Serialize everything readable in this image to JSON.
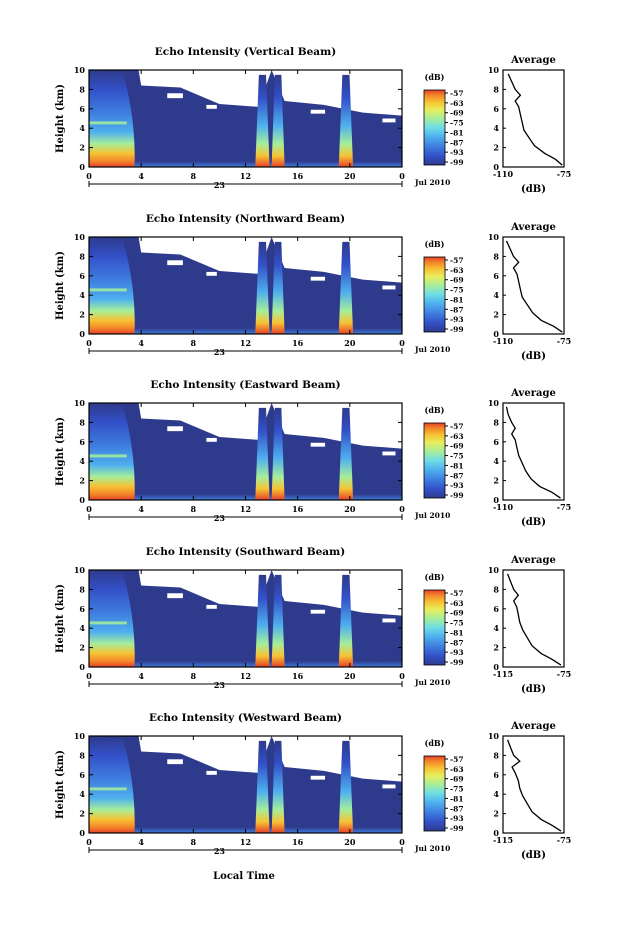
{
  "colors": {
    "background_fill": "#2e3a8c",
    "colormap": [
      "#2e3a8c",
      "#3350c8",
      "#3f7fe0",
      "#4fb0ee",
      "#6fdde6",
      "#a6ee9a",
      "#e9ee5c",
      "#f7c233",
      "#f3862a",
      "#e5402a"
    ]
  },
  "common": {
    "yticks": [
      "0",
      "2",
      "4",
      "6",
      "8",
      "10"
    ],
    "xticks": [
      "0",
      "4",
      "8",
      "12",
      "16",
      "20",
      "0"
    ],
    "ylabel": "Height (km)",
    "day_label": "23",
    "date_label": "Jul 2010",
    "cbar_unit": "(dB)",
    "avg_title": "Average",
    "avg_xlabel": "(dB)",
    "xlabel_bottom": "Local Time"
  },
  "chart_data": [
    {
      "type": "heatmap",
      "title": "Echo Intensity (Vertical Beam)",
      "ylabel": "Height (km)",
      "ylim": [
        0,
        10
      ],
      "xlim": [
        0,
        24
      ],
      "colorbar": {
        "label": "(dB)",
        "ticks": [
          "-57",
          "-63",
          "-69",
          "-75",
          "-81",
          "-87",
          "-93",
          "-99"
        ]
      },
      "average": {
        "type": "line",
        "title": "Average",
        "xlabel": "(dB)",
        "xticks": [
          "-110",
          "-75"
        ],
        "xlim": [
          -110,
          -75
        ],
        "values": [
          [
            -76,
            0.2
          ],
          [
            -80,
            0.8
          ],
          [
            -86,
            1.4
          ],
          [
            -92,
            2.2
          ],
          [
            -95,
            3.0
          ],
          [
            -98,
            3.8
          ],
          [
            -99,
            4.6
          ],
          [
            -100,
            5.4
          ],
          [
            -101,
            6.2
          ],
          [
            -103,
            6.8
          ],
          [
            -100,
            7.4
          ],
          [
            -103,
            8.0
          ],
          [
            -105,
            8.8
          ],
          [
            -107,
            9.6
          ]
        ]
      }
    },
    {
      "type": "heatmap",
      "title": "Echo Intensity (Northward Beam)",
      "ylabel": "Height (km)",
      "ylim": [
        0,
        10
      ],
      "xlim": [
        0,
        24
      ],
      "colorbar": {
        "label": "(dB)",
        "ticks": [
          "-57",
          "-63",
          "-69",
          "-75",
          "-81",
          "-87",
          "-93",
          "-99"
        ]
      },
      "average": {
        "type": "line",
        "title": "Average",
        "xlabel": "(dB)",
        "xticks": [
          "-110",
          "-75"
        ],
        "xlim": [
          -110,
          -75
        ],
        "values": [
          [
            -76,
            0.2
          ],
          [
            -81,
            0.8
          ],
          [
            -88,
            1.4
          ],
          [
            -93,
            2.2
          ],
          [
            -96,
            3.0
          ],
          [
            -99,
            3.8
          ],
          [
            -100,
            4.6
          ],
          [
            -101,
            5.4
          ],
          [
            -102,
            6.2
          ],
          [
            -104,
            6.8
          ],
          [
            -101,
            7.4
          ],
          [
            -104,
            8.0
          ],
          [
            -106,
            8.8
          ],
          [
            -108,
            9.6
          ]
        ]
      }
    },
    {
      "type": "heatmap",
      "title": "Echo Intensity (Eastward Beam)",
      "ylabel": "Height (km)",
      "ylim": [
        0,
        10
      ],
      "xlim": [
        0,
        24
      ],
      "colorbar": {
        "label": "(dB)",
        "ticks": [
          "-57",
          "-63",
          "-69",
          "-75",
          "-81",
          "-87",
          "-93",
          "-99"
        ]
      },
      "average": {
        "type": "line",
        "title": "Average",
        "xlabel": "(dB)",
        "xticks": [
          "-110",
          "-75"
        ],
        "xlim": [
          -110,
          -75
        ],
        "values": [
          [
            -77,
            0.2
          ],
          [
            -82,
            0.8
          ],
          [
            -89,
            1.4
          ],
          [
            -94,
            2.2
          ],
          [
            -97,
            3.0
          ],
          [
            -99,
            3.8
          ],
          [
            -101,
            4.6
          ],
          [
            -102,
            5.4
          ],
          [
            -103,
            6.2
          ],
          [
            -105,
            6.8
          ],
          [
            -103,
            7.4
          ],
          [
            -105,
            8.0
          ],
          [
            -107,
            8.8
          ],
          [
            -108,
            9.6
          ]
        ]
      }
    },
    {
      "type": "heatmap",
      "title": "Echo Intensity (Southward Beam)",
      "ylabel": "Height (km)",
      "ylim": [
        0,
        10
      ],
      "xlim": [
        0,
        24
      ],
      "colorbar": {
        "label": "(dB)",
        "ticks": [
          "-57",
          "-63",
          "-69",
          "-75",
          "-81",
          "-87",
          "-93",
          "-99"
        ]
      },
      "average": {
        "type": "line",
        "title": "Average",
        "xlabel": "(dB)",
        "xticks": [
          "-115",
          "-75"
        ],
        "xlim": [
          -115,
          -75
        ],
        "values": [
          [
            -77,
            0.2
          ],
          [
            -83,
            0.8
          ],
          [
            -90,
            1.4
          ],
          [
            -96,
            2.2
          ],
          [
            -99,
            3.0
          ],
          [
            -102,
            3.8
          ],
          [
            -104,
            4.6
          ],
          [
            -105,
            5.4
          ],
          [
            -106,
            6.2
          ],
          [
            -108,
            6.8
          ],
          [
            -105,
            7.4
          ],
          [
            -108,
            8.0
          ],
          [
            -110,
            8.8
          ],
          [
            -112,
            9.6
          ]
        ]
      }
    },
    {
      "type": "heatmap",
      "title": "Echo Intensity (Westward Beam)",
      "ylabel": "Height (km)",
      "ylim": [
        0,
        10
      ],
      "xlim": [
        0,
        24
      ],
      "colorbar": {
        "label": "(dB)",
        "ticks": [
          "-57",
          "-63",
          "-69",
          "-75",
          "-81",
          "-87",
          "-93",
          "-99"
        ]
      },
      "average": {
        "type": "line",
        "title": "Average",
        "xlabel": "(dB)",
        "xticks": [
          "-115",
          "-75"
        ],
        "xlim": [
          -115,
          -75
        ],
        "values": [
          [
            -77,
            0.2
          ],
          [
            -83,
            0.8
          ],
          [
            -90,
            1.4
          ],
          [
            -96,
            2.2
          ],
          [
            -99,
            3.0
          ],
          [
            -102,
            3.8
          ],
          [
            -104,
            4.6
          ],
          [
            -105,
            5.4
          ],
          [
            -107,
            6.2
          ],
          [
            -109,
            6.8
          ],
          [
            -104,
            7.4
          ],
          [
            -108,
            8.0
          ],
          [
            -110,
            8.8
          ],
          [
            -112,
            9.6
          ]
        ]
      }
    }
  ]
}
